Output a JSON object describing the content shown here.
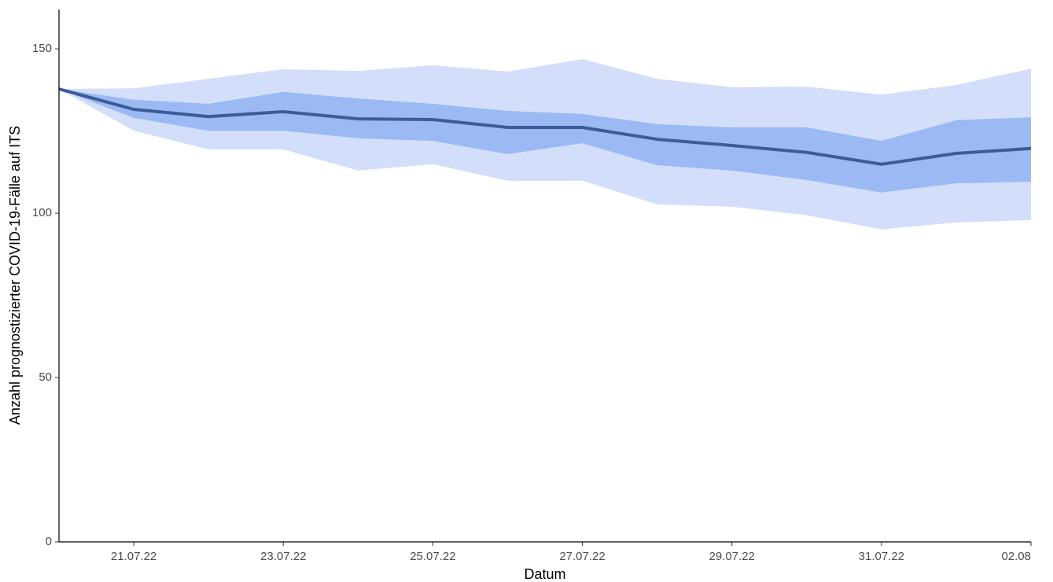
{
  "chart_data": {
    "type": "line",
    "x_label": "Datum",
    "y_label": "Anzahl prognostizierter COVID-19-Fälle auf ITS",
    "x": [
      "2022-07-20",
      "2022-07-21",
      "2022-07-22",
      "2022-07-23",
      "2022-07-24",
      "2022-07-25",
      "2022-07-26",
      "2022-07-27",
      "2022-07-28",
      "2022-07-29",
      "2022-07-30",
      "2022-07-31",
      "2022-08-01",
      "2022-08-02"
    ],
    "series": [
      {
        "color": "#3b5c99",
        "values": [
          137.8,
          131.6,
          129.4,
          130.9,
          128.7,
          128.5,
          126.1,
          126.1,
          122.5,
          120.6,
          118.5,
          114.9,
          118.2,
          119.7
        ]
      }
    ],
    "bands": [
      {
        "color": "#d2defa",
        "upper": [
          137.8,
          138,
          140.9,
          143.8,
          143.3,
          145,
          143.1,
          146.9,
          140.9,
          138.3,
          138.5,
          136.1,
          139,
          144
        ],
        "lower": [
          137.8,
          125.1,
          119.4,
          119.4,
          113,
          114.9,
          109.9,
          109.9,
          102.7,
          102,
          99.4,
          95.1,
          97.2,
          97.9
        ]
      },
      {
        "color": "#9bb9f3",
        "upper": [
          137.8,
          134.5,
          133.3,
          136.9,
          134.9,
          133.3,
          131.1,
          130.2,
          127.1,
          126.1,
          126.1,
          122,
          128.3,
          129.2
        ],
        "lower": [
          137.8,
          129,
          125.1,
          125.1,
          122.8,
          122,
          118,
          121.3,
          114.6,
          113,
          110.1,
          106.3,
          109.1,
          109.6
        ]
      }
    ],
    "xlim": [
      "2022-07-20",
      "2022-08-02"
    ],
    "xticks": [
      {
        "value": "2022-07-21",
        "label": "21.07.22"
      },
      {
        "value": "2022-07-23",
        "label": "23.07.22"
      },
      {
        "value": "2022-07-25",
        "label": "25.07.22"
      },
      {
        "value": "2022-07-27",
        "label": "27.07.22"
      },
      {
        "value": "2022-07-29",
        "label": "29.07.22"
      },
      {
        "value": "2022-07-31",
        "label": "31.07.22"
      },
      {
        "value": "2022-08-02",
        "label": "02.08"
      }
    ],
    "ylim": [
      0,
      162
    ],
    "yticks": [
      0,
      50,
      100,
      150
    ],
    "grid": false
  }
}
